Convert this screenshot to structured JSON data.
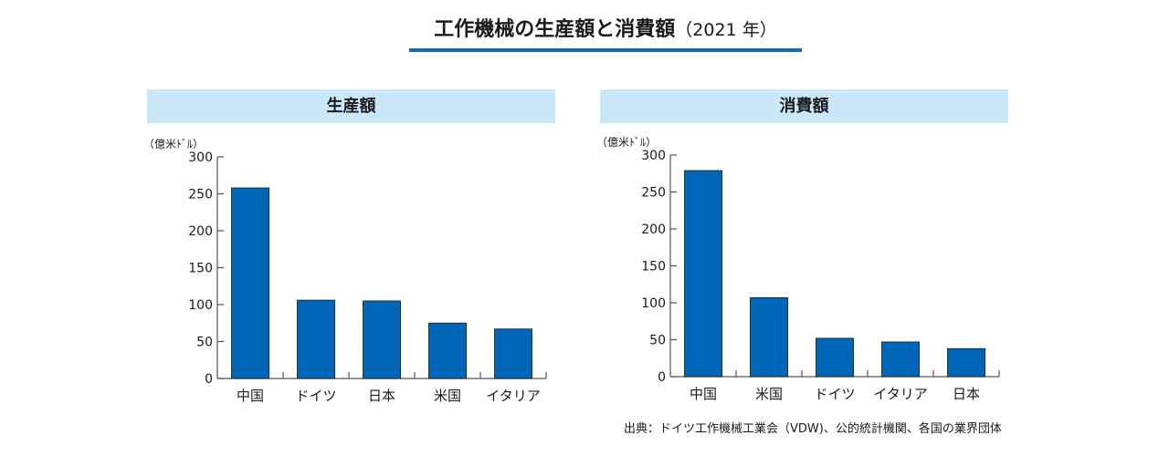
{
  "title": {
    "main": "工作機械の生産額と消費額",
    "year": "（2021 年）"
  },
  "colors": {
    "bar": "#0066b8",
    "bar_edge": "#1a1a1a",
    "panel_header": "#c9e7f9",
    "title_rule": "#1565b9",
    "axis": "#555555"
  },
  "chart_data": [
    {
      "type": "bar",
      "title": "生産額",
      "ylabel": "（億米ﾄﾞﾙ）",
      "xlabel": "",
      "ylim": [
        0,
        300
      ],
      "yticks": [
        "0",
        "50",
        "100",
        "150",
        "200",
        "250",
        "300"
      ],
      "categories": [
        "中国",
        "ドイツ",
        "日本",
        "米国",
        "イタリア"
      ],
      "values": [
        258,
        106,
        105,
        75,
        67
      ],
      "grid": false,
      "legend": "none"
    },
    {
      "type": "bar",
      "title": "消費額",
      "ylabel": "（億米ﾄﾞﾙ）",
      "xlabel": "",
      "ylim": [
        0,
        300
      ],
      "yticks": [
        "0",
        "50",
        "100",
        "150",
        "200",
        "250",
        "300"
      ],
      "categories": [
        "中国",
        "米国",
        "ドイツ",
        "イタリア",
        "日本"
      ],
      "values": [
        279,
        107,
        52,
        47,
        38
      ],
      "grid": false,
      "legend": "none"
    }
  ],
  "source": "出典：ドイツ工作機械工業会（VDW)、公的統計機関、各国の業界団体"
}
